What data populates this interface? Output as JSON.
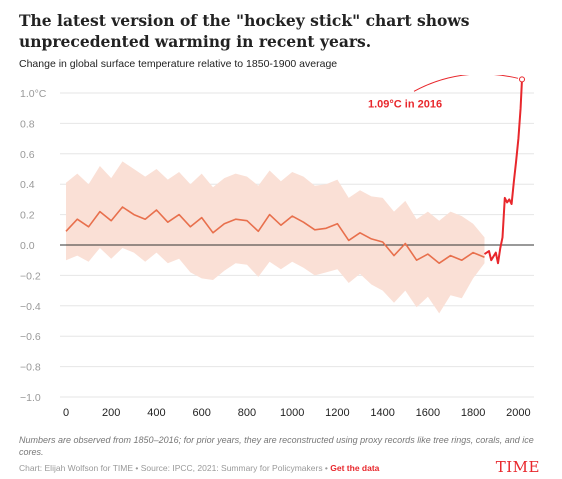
{
  "header": {
    "title": "The latest version of the \"hockey stick\" chart shows unprecedented warming in recent years.",
    "subtitle": "Change in global surface temperature relative to 1850-1900 average"
  },
  "chart_data": {
    "type": "line",
    "title": "The latest version of the \"hockey stick\" chart shows unprecedented warming in recent years.",
    "subtitle": "Change in global surface temperature relative to 1850-1900 average",
    "xlabel": "",
    "ylabel": "",
    "xlim": [
      0,
      2016
    ],
    "ylim": [
      -1.0,
      1.0
    ],
    "x_ticks": [
      0,
      200,
      400,
      600,
      800,
      1000,
      1200,
      1400,
      1600,
      1800,
      2000
    ],
    "y_ticks": [
      1.0,
      0.8,
      0.6,
      0.4,
      0.2,
      0.0,
      -0.2,
      -0.4,
      -0.6,
      -0.8,
      -1.0
    ],
    "y_tick_labels": [
      "1.0°C",
      "0.8",
      "0.6",
      "0.4",
      "0.2",
      "0.0",
      "−0.2",
      "−0.4",
      "−0.6",
      "−0.8",
      "−1.0"
    ],
    "grid": "horizontal",
    "zero_line": true,
    "series": [
      {
        "color": "#e8704d",
        "x": [
          0,
          50,
          100,
          150,
          200,
          250,
          300,
          350,
          400,
          450,
          500,
          550,
          600,
          650,
          700,
          750,
          800,
          850,
          900,
          950,
          1000,
          1050,
          1100,
          1150,
          1200,
          1250,
          1300,
          1350,
          1400,
          1450,
          1500,
          1550,
          1600,
          1650,
          1700,
          1750,
          1800,
          1850
        ],
        "values": [
          0.09,
          0.17,
          0.12,
          0.22,
          0.16,
          0.25,
          0.2,
          0.17,
          0.23,
          0.15,
          0.2,
          0.12,
          0.18,
          0.08,
          0.14,
          0.17,
          0.16,
          0.09,
          0.2,
          0.13,
          0.19,
          0.15,
          0.1,
          0.11,
          0.14,
          0.03,
          0.08,
          0.04,
          0.02,
          -0.07,
          0.01,
          -0.1,
          -0.06,
          -0.12,
          -0.07,
          -0.1,
          -0.05,
          -0.08
        ],
        "band_low": [
          -0.1,
          -0.07,
          -0.11,
          -0.02,
          -0.09,
          -0.02,
          -0.05,
          -0.11,
          -0.05,
          -0.12,
          -0.09,
          -0.18,
          -0.22,
          -0.23,
          -0.17,
          -0.12,
          -0.13,
          -0.21,
          -0.11,
          -0.16,
          -0.11,
          -0.15,
          -0.2,
          -0.18,
          -0.16,
          -0.25,
          -0.19,
          -0.26,
          -0.3,
          -0.38,
          -0.3,
          -0.41,
          -0.34,
          -0.45,
          -0.33,
          -0.35,
          -0.22,
          -0.12
        ],
        "band_high": [
          0.41,
          0.47,
          0.4,
          0.52,
          0.44,
          0.55,
          0.5,
          0.45,
          0.5,
          0.43,
          0.48,
          0.4,
          0.47,
          0.38,
          0.44,
          0.47,
          0.45,
          0.39,
          0.49,
          0.42,
          0.48,
          0.45,
          0.39,
          0.4,
          0.43,
          0.31,
          0.36,
          0.32,
          0.31,
          0.22,
          0.29,
          0.17,
          0.22,
          0.16,
          0.22,
          0.19,
          0.14,
          0.05
        ]
      },
      {
        "color": "#e8272c",
        "x": [
          1850,
          1870,
          1880,
          1900,
          1910,
          1920,
          1930,
          1940,
          1950,
          1960,
          1970,
          1980,
          1990,
          2000,
          2010,
          2016
        ],
        "values": [
          -0.06,
          -0.04,
          -0.1,
          -0.05,
          -0.12,
          -0.02,
          0.05,
          0.31,
          0.28,
          0.3,
          0.27,
          0.42,
          0.55,
          0.7,
          0.9,
          1.09
        ]
      }
    ],
    "annotation": {
      "text": "1.09°C in 2016",
      "x": 2016,
      "y": 1.09
    },
    "note": "Numbers are observed from 1850–2016; for prior years, they are reconstructed using proxy records like tree rings, corals, and ice cores."
  },
  "footer": {
    "credit": "Chart: Elijah Wolfson for TIME • Source: IPCC, 2021: Summary for Policymakers • ",
    "get_data": "Get the data",
    "brand": "TIME"
  },
  "colors": {
    "band": "#fae0d6",
    "historical_line": "#e8704d",
    "recent_line": "#e8272c",
    "annotation": "#e8272c",
    "grid": "#e6e6e6",
    "zero_line": "#333333",
    "brand": "#e8272c"
  }
}
